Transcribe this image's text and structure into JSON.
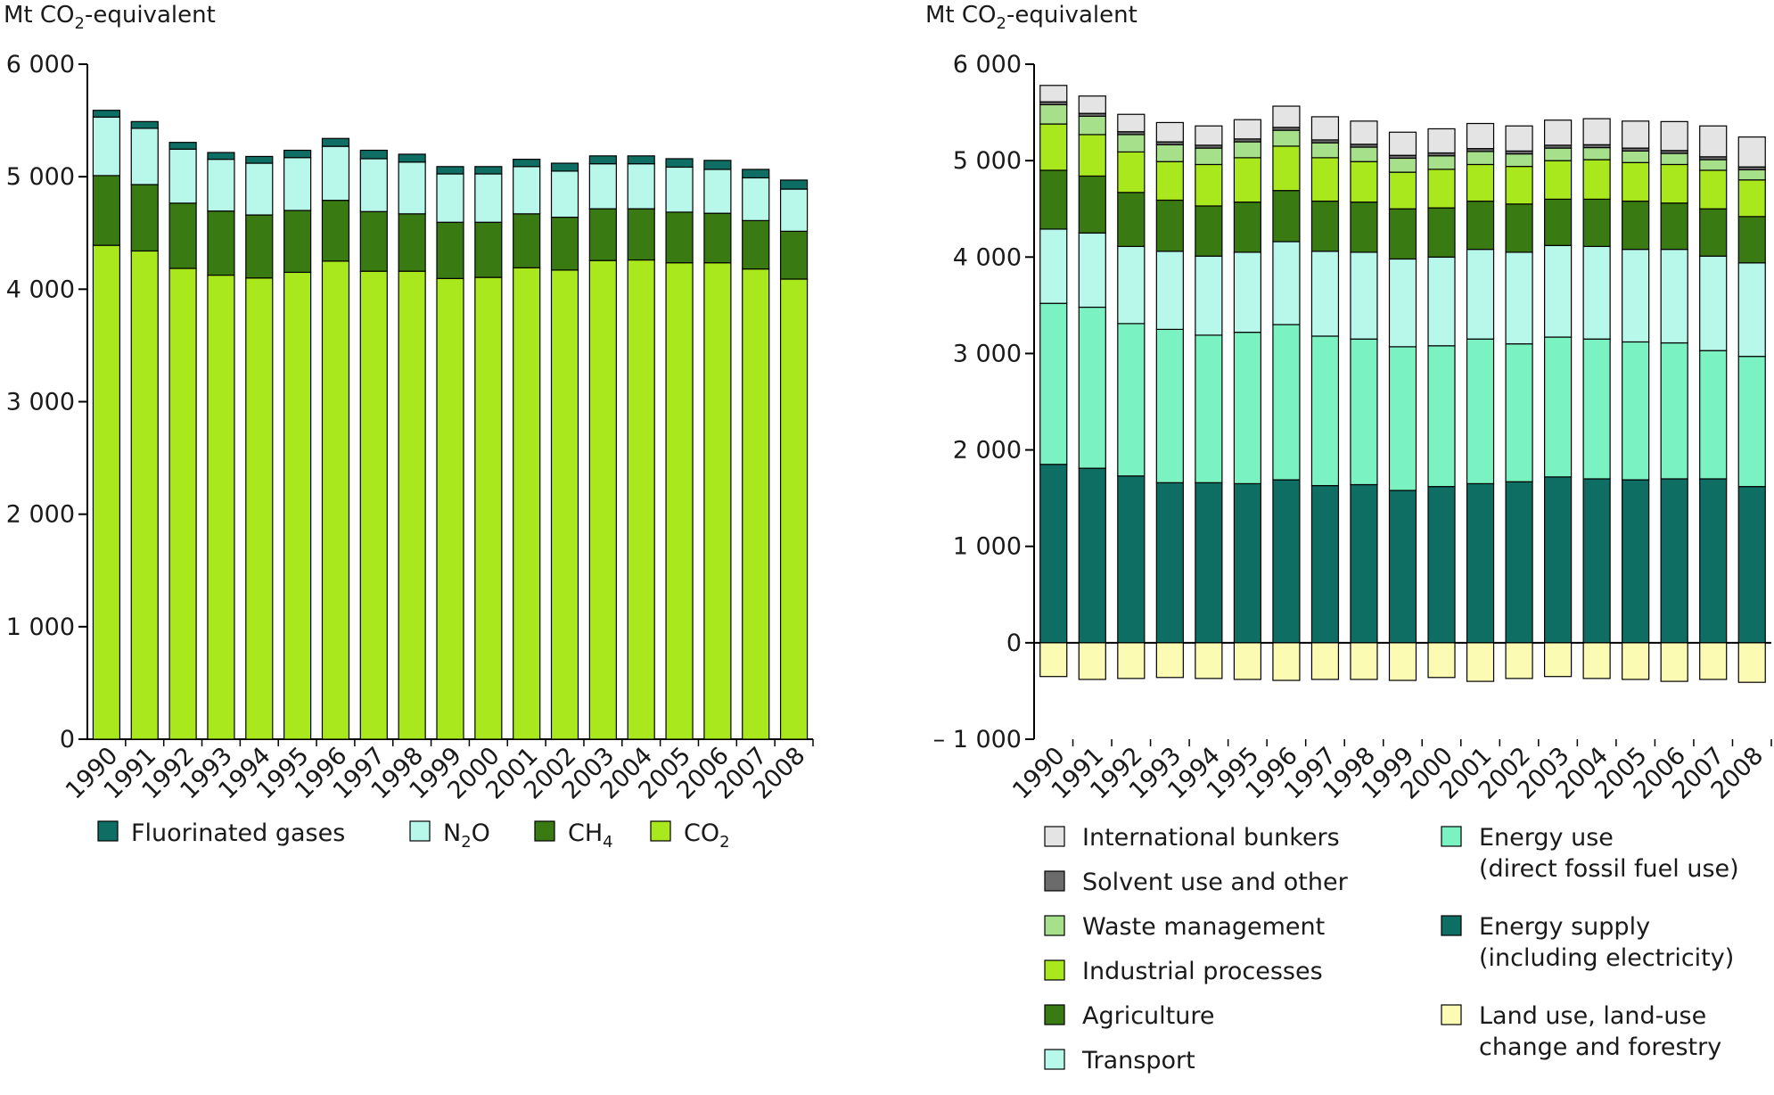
{
  "chart_data": [
    {
      "type": "bar",
      "stacked": true,
      "ylabel": "Mt CO2-equivalent",
      "ylabel_parts": {
        "main": "Mt CO",
        "sub": "2",
        "rest": "-equivalent"
      },
      "ylim": [
        0,
        6000
      ],
      "yticks": [
        0,
        1000,
        2000,
        3000,
        4000,
        5000,
        6000
      ],
      "ytick_labels": [
        "0",
        "1 000",
        "2 000",
        "3 000",
        "4 000",
        "5 000",
        "6 000"
      ],
      "categories": [
        "1990",
        "1991",
        "1992",
        "1993",
        "1994",
        "1995",
        "1996",
        "1997",
        "1998",
        "1999",
        "2000",
        "2001",
        "2002",
        "2003",
        "2004",
        "2005",
        "2006",
        "2007",
        "2008"
      ],
      "series": [
        {
          "name": "CO2",
          "name_parts": {
            "main": "CO",
            "sub": "2"
          },
          "color": "#a8e81c",
          "values": [
            4390,
            4340,
            4185,
            4125,
            4100,
            4150,
            4250,
            4160,
            4160,
            4095,
            4105,
            4190,
            4170,
            4255,
            4260,
            4235,
            4235,
            4180,
            4090
          ]
        },
        {
          "name": "CH4",
          "name_parts": {
            "main": "CH",
            "sub": "4"
          },
          "color": "#3a7a12",
          "values": [
            620,
            590,
            580,
            570,
            560,
            550,
            540,
            530,
            510,
            500,
            490,
            480,
            470,
            460,
            455,
            450,
            440,
            430,
            425
          ]
        },
        {
          "name": "N2O",
          "name_parts": {
            "main": "N",
            "sub": "2",
            "rest": "O"
          },
          "color": "#b7f8ea",
          "values": [
            520,
            500,
            480,
            460,
            460,
            470,
            480,
            470,
            460,
            430,
            430,
            420,
            410,
            400,
            400,
            400,
            390,
            380,
            375
          ]
        },
        {
          "name": "Fluorinated gases",
          "color": "#0f6e64",
          "values": [
            60,
            60,
            60,
            60,
            60,
            65,
            70,
            75,
            70,
            65,
            65,
            65,
            70,
            70,
            70,
            75,
            80,
            75,
            80
          ]
        }
      ],
      "legend": [
        {
          "label": "Fluorinated gases",
          "color": "#0f6e64"
        },
        {
          "label_main": "N",
          "label_sub": "2",
          "label_rest": "O",
          "color": "#b7f8ea"
        },
        {
          "label_main": "CH",
          "label_sub": "4",
          "label_rest": "",
          "color": "#3a7a12"
        },
        {
          "label_main": "CO",
          "label_sub": "2",
          "label_rest": "",
          "color": "#a8e81c"
        }
      ],
      "legend_placement": "bottom",
      "grid": false
    },
    {
      "type": "bar",
      "stacked": true,
      "ylabel": "Mt CO2-equivalent",
      "ylabel_parts": {
        "main": "Mt CO",
        "sub": "2",
        "rest": "-equivalent"
      },
      "ylim": [
        -1000,
        6000
      ],
      "yticks": [
        -1000,
        0,
        1000,
        2000,
        3000,
        4000,
        5000,
        6000
      ],
      "ytick_labels": [
        "– 1 000",
        "0",
        "1 000",
        "2 000",
        "3 000",
        "4 000",
        "5 000",
        "6 000"
      ],
      "categories": [
        "1990",
        "1991",
        "1992",
        "1993",
        "1994",
        "1995",
        "1996",
        "1997",
        "1998",
        "1999",
        "2000",
        "2001",
        "2002",
        "2003",
        "2004",
        "2005",
        "2006",
        "2007",
        "2008"
      ],
      "series": [
        {
          "name": "Energy supply (including electricity)",
          "color": "#0f6e64",
          "values": [
            1850,
            1810,
            1730,
            1660,
            1660,
            1650,
            1690,
            1630,
            1640,
            1580,
            1620,
            1650,
            1670,
            1720,
            1700,
            1690,
            1700,
            1700,
            1620
          ]
        },
        {
          "name": "Energy use (direct fossil fuel use)",
          "color": "#7bf2c1",
          "values": [
            1670,
            1670,
            1580,
            1590,
            1530,
            1570,
            1610,
            1550,
            1510,
            1490,
            1460,
            1500,
            1430,
            1450,
            1450,
            1430,
            1410,
            1330,
            1350
          ]
        },
        {
          "name": "Transport",
          "color": "#b7f8ea",
          "values": [
            770,
            770,
            800,
            810,
            820,
            830,
            860,
            880,
            900,
            910,
            920,
            930,
            950,
            950,
            960,
            960,
            970,
            980,
            970
          ]
        },
        {
          "name": "Agriculture",
          "color": "#3a7a12",
          "values": [
            610,
            590,
            560,
            530,
            520,
            520,
            530,
            520,
            520,
            520,
            510,
            500,
            500,
            480,
            490,
            500,
            480,
            490,
            480
          ]
        },
        {
          "name": "Industrial processes",
          "color": "#a8e81c",
          "values": [
            480,
            430,
            420,
            400,
            430,
            460,
            460,
            450,
            420,
            380,
            400,
            380,
            390,
            400,
            410,
            400,
            400,
            400,
            380
          ]
        },
        {
          "name": "Waste management",
          "color": "#a6e08a",
          "values": [
            200,
            190,
            180,
            175,
            170,
            165,
            165,
            155,
            150,
            145,
            140,
            135,
            130,
            130,
            125,
            120,
            115,
            110,
            105
          ]
        },
        {
          "name": "Solvent use and other",
          "color": "#6b6b6b",
          "values": [
            30,
            30,
            30,
            30,
            30,
            30,
            30,
            30,
            30,
            30,
            30,
            30,
            30,
            30,
            30,
            30,
            30,
            30,
            30
          ]
        },
        {
          "name": "International bunkers",
          "color": "#e4e4e4",
          "values": [
            170,
            180,
            180,
            200,
            200,
            200,
            220,
            240,
            240,
            240,
            250,
            260,
            260,
            260,
            270,
            280,
            300,
            320,
            310
          ]
        },
        {
          "name": "Land use, land-use change and forestry",
          "color": "#fcfbb3",
          "values": [
            -350,
            -380,
            -370,
            -360,
            -370,
            -380,
            -390,
            -380,
            -380,
            -390,
            -360,
            -400,
            -370,
            -350,
            -370,
            -380,
            -400,
            -380,
            -410
          ]
        }
      ],
      "legend": [
        {
          "label": "International bunkers",
          "color": "#e4e4e4"
        },
        {
          "label": "Solvent use and other",
          "color": "#6b6b6b"
        },
        {
          "label": "Waste management",
          "color": "#a6e08a"
        },
        {
          "label": "Industrial processes",
          "color": "#a8e81c"
        },
        {
          "label": "Agriculture",
          "color": "#3a7a12"
        },
        {
          "label": "Transport",
          "color": "#b7f8ea"
        },
        {
          "label": "Energy use\n(direct fossil fuel use)",
          "color": "#7bf2c1"
        },
        {
          "label": "Energy supply\n(including electricity)",
          "color": "#0f6e64"
        },
        {
          "label": "Land use, land-use\nchange and forestry",
          "color": "#fcfbb3"
        }
      ],
      "legend_placement": "bottom",
      "grid": false
    }
  ]
}
